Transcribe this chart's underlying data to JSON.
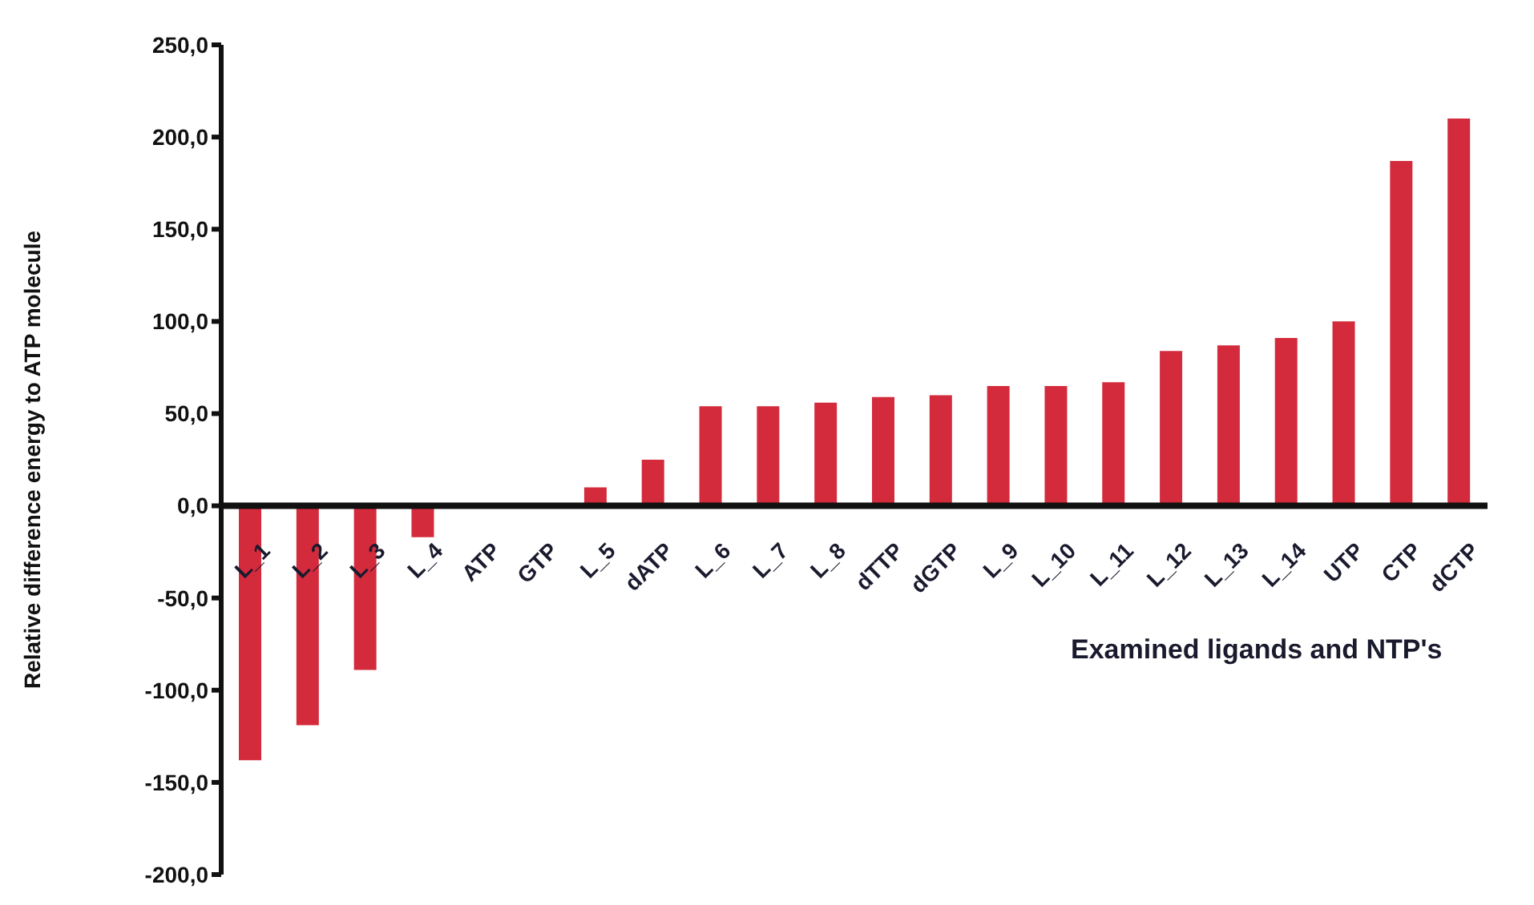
{
  "chart_data": {
    "type": "bar",
    "xlabel": "Examined ligands and NTP's",
    "ylabel": "Relative difference energy to ATP molecule",
    "categories": [
      "L_1",
      "L_2",
      "L_3",
      "L_4",
      "ATP",
      "GTP",
      "L_5",
      "dATP",
      "L_6",
      "L_7",
      "L_8",
      "dTTP",
      "dGTP",
      "L_9",
      "L_10",
      "L_11",
      "L_12",
      "L_13",
      "L_14",
      "UTP",
      "CTP",
      "dCTP"
    ],
    "values": [
      -138,
      -119,
      -89,
      -17,
      0,
      0,
      10,
      25,
      54,
      54,
      56,
      59,
      60,
      65,
      65,
      67,
      84,
      87,
      91,
      100,
      187,
      210
    ],
    "color": "#d42b3c",
    "ylim": [
      -200,
      250
    ],
    "yticks": [
      {
        "value": -200,
        "label": "-200,0"
      },
      {
        "value": -150,
        "label": "-150,0"
      },
      {
        "value": -100,
        "label": "-100,0"
      },
      {
        "value": -50,
        "label": "-50,0"
      },
      {
        "value": 0,
        "label": "0,0"
      },
      {
        "value": 50,
        "label": "50,0"
      },
      {
        "value": 100,
        "label": "100,0"
      },
      {
        "value": 150,
        "label": "150,0"
      },
      {
        "value": 200,
        "label": "200,0"
      },
      {
        "value": 250,
        "label": "250,0"
      }
    ],
    "grid": false,
    "legend": false
  }
}
